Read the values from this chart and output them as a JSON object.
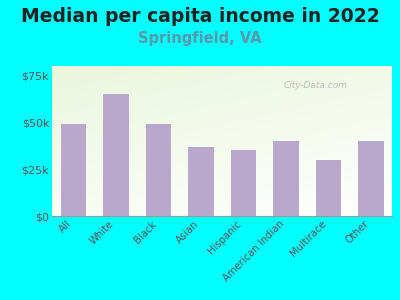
{
  "title": "Median per capita income in 2022",
  "subtitle": "Springfield, VA",
  "categories": [
    "All",
    "White",
    "Black",
    "Asian",
    "Hispanic",
    "American Indian",
    "Multirace",
    "Other"
  ],
  "values": [
    49000,
    65000,
    49000,
    37000,
    35000,
    40000,
    30000,
    40000
  ],
  "bar_color": "#b8a8cc",
  "background_outer": "#00FFFF",
  "background_inner_colors": [
    "#e8f5d8",
    "#ffffff"
  ],
  "title_color": "#222222",
  "subtitle_color": "#5599aa",
  "tick_label_color": "#555555",
  "ytick_label_color": "#555555",
  "ylim": [
    0,
    80000
  ],
  "yticks": [
    0,
    25000,
    50000,
    75000
  ],
  "ytick_labels": [
    "$0",
    "$25k",
    "$50k",
    "$75k"
  ],
  "watermark": "City-Data.com",
  "title_fontsize": 13.5,
  "subtitle_fontsize": 10.5,
  "bar_width": 0.6
}
